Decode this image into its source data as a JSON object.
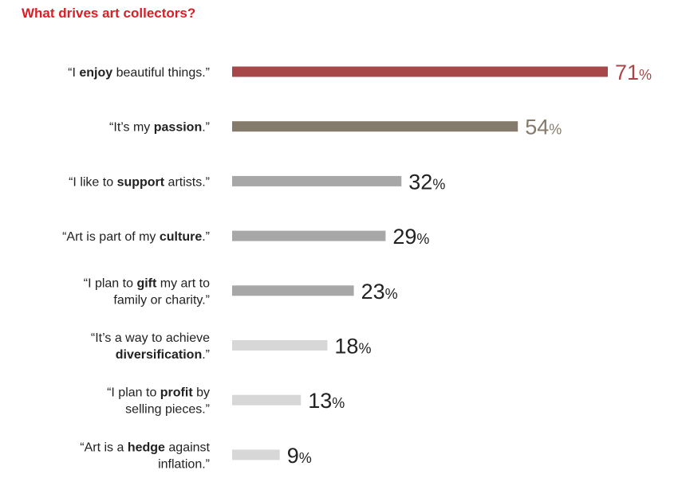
{
  "colors": {
    "title": "#d62027",
    "top": "#a8474a",
    "second": "#857b6c",
    "mid": "#a7a7a7",
    "light": "#d7d7d7",
    "value_text": "#222222"
  },
  "chart_data": {
    "type": "bar",
    "orientation": "horizontal",
    "title": "What drives art collectors?",
    "unit": "%",
    "xlim": [
      0,
      71
    ],
    "grid": false,
    "legend": "none",
    "categories": [
      {
        "lines": [
          [
            {
              "t": "“I ",
              "b": false
            },
            {
              "t": "enjoy",
              "b": true
            },
            {
              "t": " beautiful things.”",
              "b": false
            }
          ]
        ],
        "value": 71,
        "color_key": "top"
      },
      {
        "lines": [
          [
            {
              "t": "“It’s my ",
              "b": false
            },
            {
              "t": "passion",
              "b": true
            },
            {
              "t": ".”",
              "b": false
            }
          ]
        ],
        "value": 54,
        "color_key": "second"
      },
      {
        "lines": [
          [
            {
              "t": "“I like to ",
              "b": false
            },
            {
              "t": "support",
              "b": true
            },
            {
              "t": " artists.”",
              "b": false
            }
          ]
        ],
        "value": 32,
        "color_key": "mid"
      },
      {
        "lines": [
          [
            {
              "t": "“Art is part of my ",
              "b": false
            },
            {
              "t": "culture",
              "b": true
            },
            {
              "t": ".”",
              "b": false
            }
          ]
        ],
        "value": 29,
        "color_key": "mid"
      },
      {
        "lines": [
          [
            {
              "t": "“I plan to ",
              "b": false
            },
            {
              "t": "gift",
              "b": true
            },
            {
              "t": " my art to",
              "b": false
            }
          ],
          [
            {
              "t": "family or charity.”",
              "b": false
            }
          ]
        ],
        "value": 23,
        "color_key": "mid"
      },
      {
        "lines": [
          [
            {
              "t": "“It’s a way to achieve",
              "b": false
            }
          ],
          [
            {
              "t": "diversification",
              "b": true
            },
            {
              "t": ".”",
              "b": false
            }
          ]
        ],
        "value": 18,
        "color_key": "light"
      },
      {
        "lines": [
          [
            {
              "t": "“I plan to ",
              "b": false
            },
            {
              "t": "profit",
              "b": true
            },
            {
              "t": " by",
              "b": false
            }
          ],
          [
            {
              "t": "selling pieces.”",
              "b": false
            }
          ]
        ],
        "value": 13,
        "color_key": "light"
      },
      {
        "lines": [
          [
            {
              "t": "“Art is a ",
              "b": false
            },
            {
              "t": "hedge",
              "b": true
            },
            {
              "t": " against",
              "b": false
            }
          ],
          [
            {
              "t": "inflation.”",
              "b": false
            }
          ]
        ],
        "value": 9,
        "color_key": "light"
      }
    ]
  }
}
